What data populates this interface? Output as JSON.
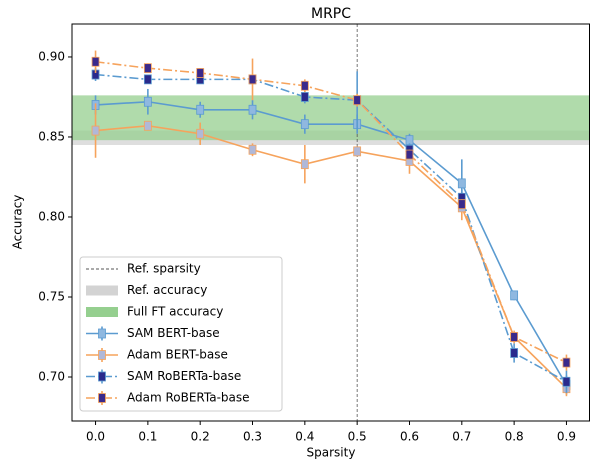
{
  "chart_data": {
    "type": "line",
    "title": "MRPC",
    "x_label": "Sparsity",
    "y_label": "Accuracy",
    "x": [
      0.0,
      0.1,
      0.2,
      0.3,
      0.4,
      0.5,
      0.6,
      0.7,
      0.8,
      0.9
    ],
    "xlim": [
      -0.045,
      0.945
    ],
    "xticks": [
      {
        "value": 0,
        "label": "0.0"
      },
      0.1,
      0.2,
      0.3,
      0.4,
      0.5,
      0.6,
      0.7,
      0.8,
      0.9
    ],
    "ylim": [
      0.6725,
      0.9206
    ],
    "yticks": [
      {
        "value": 0.7,
        "label": "0.70"
      },
      0.75,
      {
        "value": 0.8,
        "label": "0.80"
      },
      0.85,
      {
        "value": 0.9,
        "label": "0.90"
      }
    ],
    "ref_sparsity": {
      "name": "Ref. sparsity",
      "value": 0.5,
      "color": "#555555"
    },
    "ref_accuracy": {
      "name": "Ref. accuracy",
      "range": [
        0.845,
        0.854
      ],
      "color": "#d3d3d3"
    },
    "full_ft_accuracy": {
      "name": "Full FT accuracy",
      "range": [
        0.848,
        0.876
      ],
      "color": "#95cf8f"
    },
    "legend": "lower left",
    "series": [
      {
        "name": "SAM BERT-base",
        "color": "#5b9bd0",
        "linestyle": "solid",
        "marker_color": "#8fb8e0",
        "values": [
          0.87,
          0.872,
          0.867,
          0.867,
          0.858,
          0.858,
          0.848,
          0.821,
          0.751,
          0.695
        ],
        "errors": [
          0.006,
          0.008,
          0.005,
          0.006,
          0.006,
          0.006,
          0.004,
          0.015,
          0.003,
          0.006
        ]
      },
      {
        "name": "Adam BERT-base",
        "color": "#f6a35c",
        "linestyle": "solid",
        "marker_color": "#b0b8d8",
        "values": [
          0.854,
          0.857,
          0.852,
          0.842,
          0.833,
          0.841,
          0.835,
          0.806,
          0.725,
          0.693
        ],
        "errors": [
          0.017,
          0.003,
          0.007,
          0.004,
          0.012,
          0.002,
          0.008,
          0.008,
          0.003,
          0.005
        ]
      },
      {
        "name": "SAM RoBERTa-base",
        "color": "#5b9bd0",
        "linestyle": "dashdot",
        "marker_color": "#2a2a8c",
        "values": [
          0.889,
          0.886,
          0.886,
          0.886,
          0.875,
          0.873,
          0.842,
          0.812,
          0.715,
          0.697
        ],
        "errors": [
          0.004,
          0.002,
          0.002,
          0.003,
          0.004,
          0.018,
          0.004,
          0.005,
          0.006,
          0.007
        ]
      },
      {
        "name": "Adam RoBERTa-base",
        "color": "#f6a35c",
        "linestyle": "dashdot",
        "marker_color": "#3a2a8c",
        "values": [
          0.897,
          0.893,
          0.89,
          0.886,
          0.882,
          0.873,
          0.839,
          0.808,
          0.725,
          0.709
        ],
        "errors": [
          0.007,
          0.003,
          0.003,
          0.013,
          0.004,
          0.004,
          0.003,
          0.003,
          0.004,
          0.005
        ]
      }
    ]
  }
}
